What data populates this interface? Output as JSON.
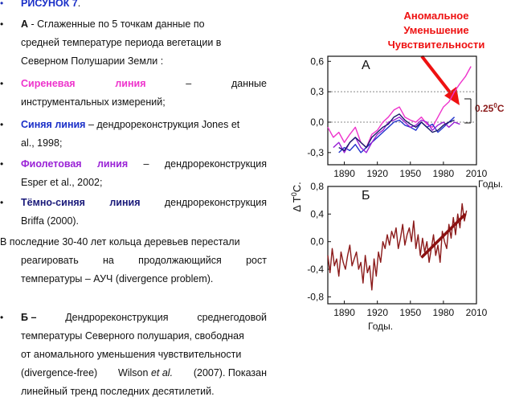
{
  "figure_label": "РИСУНОК 7",
  "figure_label_dot": ".",
  "item_a": {
    "letter": "А",
    "text_1": " - Сглаженные по 5 точкам данные по",
    "text_2": "средней температуре периода вегетации в",
    "text_3": "Северном Полушарии Земли :"
  },
  "lilac_line": {
    "words": [
      "Сиреневая",
      "линия",
      "–",
      "данные"
    ],
    "rest": "инструментальных измерений;"
  },
  "blue_line": {
    "name": "Синяя линия",
    "text_1": " – дендрореконструкция Jones et",
    "text_2": "al., 1998;"
  },
  "violet_line": {
    "words": [
      "Фиолетовая",
      "линия",
      "–",
      "дендрореконструкция"
    ],
    "rest": "Esper  et al., 2002;"
  },
  "darkblue_line": {
    "words": [
      "Тёмно-синяя",
      "линия",
      "дендрореконструкция"
    ],
    "rest": "Briffa (2000)."
  },
  "divergence": {
    "line_1": "В последние 30-40 лет кольца деревьев перестали",
    "line_2_words": [
      "реагировать",
      "на",
      "продолжающийся",
      "рост"
    ],
    "line_3": "температуры – АУЧ (divergence problem)."
  },
  "item_b": {
    "letter": "Б",
    "line_1_words": [
      "–",
      "Дендрореконструкция",
      "среднегодовой"
    ],
    "line_2": "температуры Северного полушария, свободная",
    "line_3": "от аномального уменьшения чувствительности",
    "line_4_words": [
      "(divergence-free)",
      "Wilson"
    ],
    "line_4_italic": "et al.",
    "line_4_end": "(2007). Показан",
    "line_5": "линейный тренд последних десятилетий."
  },
  "annotation": {
    "lines": [
      "Аномальное",
      "Уменьшение",
      "Чувствительности"
    ],
    "color": "#ee1111"
  },
  "delta_label": "0.25",
  "delta_sup": "0",
  "delta_unit": "C",
  "y_axis_label": "Δ T",
  "y_axis_sup": "0",
  "y_axis_unit": "C.",
  "chart_data": [
    {
      "type": "line",
      "panel_label": "А",
      "xlabel": "Годы.",
      "xlim": [
        1875,
        2010
      ],
      "ylim": [
        -0.42,
        0.65
      ],
      "x_ticks": [
        1890,
        1920,
        1950,
        1980,
        2010
      ],
      "y_ticks": [
        0.6,
        0.3,
        0.0,
        -0.3
      ],
      "y_tick_labels": [
        "0,6",
        "0,3",
        "0,0",
        "-0,3"
      ],
      "series": [
        {
          "color": "#ee33cc",
          "x": [
            1875,
            1880,
            1885,
            1890,
            1895,
            1900,
            1905,
            1910,
            1915,
            1920,
            1925,
            1930,
            1935,
            1940,
            1945,
            1950,
            1955,
            1960,
            1965,
            1970,
            1975,
            1980,
            1985,
            1990,
            1995,
            2000,
            2005
          ],
          "y": [
            -0.05,
            -0.15,
            -0.1,
            -0.2,
            -0.12,
            -0.05,
            -0.2,
            -0.25,
            -0.12,
            -0.08,
            0.0,
            0.05,
            0.12,
            0.15,
            0.05,
            0.02,
            0.0,
            0.05,
            -0.02,
            -0.05,
            0.05,
            0.15,
            0.2,
            0.3,
            0.38,
            0.45,
            0.55
          ]
        },
        {
          "color": "#2233cc",
          "x": [
            1885,
            1890,
            1895,
            1900,
            1905,
            1910,
            1915,
            1920,
            1925,
            1930,
            1935,
            1940,
            1945,
            1950,
            1955,
            1960,
            1965,
            1970,
            1975,
            1980,
            1985,
            1990
          ],
          "y": [
            -0.3,
            -0.25,
            -0.28,
            -0.22,
            -0.3,
            -0.25,
            -0.2,
            -0.15,
            -0.1,
            -0.05,
            0.0,
            0.02,
            -0.03,
            -0.05,
            -0.08,
            0.0,
            -0.05,
            -0.02,
            -0.1,
            -0.05,
            0.0,
            0.05
          ]
        },
        {
          "color": "#9a22d6",
          "x": [
            1880,
            1885,
            1890,
            1895,
            1900,
            1905,
            1910,
            1915,
            1920,
            1925,
            1930,
            1935,
            1940,
            1945,
            1950,
            1955,
            1960,
            1965,
            1970,
            1975,
            1980,
            1985,
            1990,
            1995
          ],
          "y": [
            -0.25,
            -0.2,
            -0.3,
            -0.2,
            -0.15,
            -0.25,
            -0.3,
            -0.2,
            -0.12,
            -0.08,
            0.0,
            0.02,
            0.05,
            0.0,
            -0.05,
            -0.03,
            0.02,
            0.0,
            -0.08,
            -0.03,
            0.0,
            -0.05,
            0.0,
            -0.02
          ]
        },
        {
          "color": "#1a1a6a",
          "x": [
            1885,
            1890,
            1895,
            1900,
            1905,
            1910,
            1915,
            1920,
            1925,
            1930,
            1935,
            1940,
            1945,
            1950,
            1955,
            1960,
            1965,
            1970,
            1975,
            1980,
            1985,
            1990
          ],
          "y": [
            -0.25,
            -0.28,
            -0.2,
            -0.15,
            -0.2,
            -0.25,
            -0.15,
            -0.1,
            -0.05,
            -0.02,
            0.05,
            0.08,
            0.02,
            -0.02,
            -0.05,
            0.0,
            -0.05,
            -0.1,
            -0.08,
            -0.03,
            0.0,
            0.02
          ]
        }
      ]
    },
    {
      "type": "line",
      "panel_label": "Б",
      "xlabel": "Годы.",
      "xlim": [
        1875,
        2010
      ],
      "ylim": [
        -0.9,
        0.8
      ],
      "x_ticks": [
        1890,
        1920,
        1950,
        1980,
        2010
      ],
      "y_ticks": [
        0.8,
        0.4,
        0.0,
        -0.4,
        -0.8
      ],
      "y_tick_labels": [
        "0,8",
        "0,4",
        "0,0",
        "-0,4",
        "-0,8"
      ],
      "series": [
        {
          "color": "#8b1a1a",
          "x": [
            1875,
            1877,
            1879,
            1881,
            1883,
            1885,
            1887,
            1889,
            1891,
            1893,
            1895,
            1897,
            1899,
            1901,
            1903,
            1905,
            1907,
            1909,
            1911,
            1913,
            1915,
            1917,
            1919,
            1921,
            1923,
            1925,
            1927,
            1929,
            1931,
            1933,
            1935,
            1937,
            1939,
            1941,
            1943,
            1945,
            1947,
            1949,
            1951,
            1953,
            1955,
            1957,
            1959,
            1961,
            1963,
            1965,
            1967,
            1969,
            1971,
            1973,
            1975,
            1977,
            1979,
            1981,
            1983,
            1985,
            1987,
            1989,
            1991,
            1993,
            1995,
            1997,
            1999,
            2001
          ],
          "y": [
            -0.2,
            -0.45,
            -0.1,
            -0.35,
            -0.25,
            -0.5,
            -0.15,
            -0.3,
            -0.4,
            -0.2,
            -0.05,
            -0.35,
            -0.25,
            -0.15,
            -0.4,
            -0.3,
            -0.6,
            -0.2,
            -0.45,
            -0.35,
            -0.7,
            -0.25,
            -0.5,
            -0.15,
            -0.3,
            0.0,
            -0.1,
            0.1,
            -0.05,
            0.15,
            0.05,
            0.2,
            -0.1,
            0.05,
            0.25,
            -0.05,
            0.1,
            0.2,
            0.0,
            0.3,
            -0.1,
            0.1,
            -0.2,
            0.05,
            -0.15,
            0.0,
            -0.3,
            -0.1,
            0.1,
            -0.2,
            -0.05,
            -0.3,
            0.15,
            0.0,
            -0.1,
            0.25,
            0.05,
            0.35,
            0.1,
            0.4,
            0.2,
            0.55,
            0.3,
            0.45
          ]
        },
        {
          "color": "#8b1010",
          "x": [
            1960,
            2000
          ],
          "y": [
            -0.23,
            0.4
          ]
        }
      ]
    }
  ]
}
